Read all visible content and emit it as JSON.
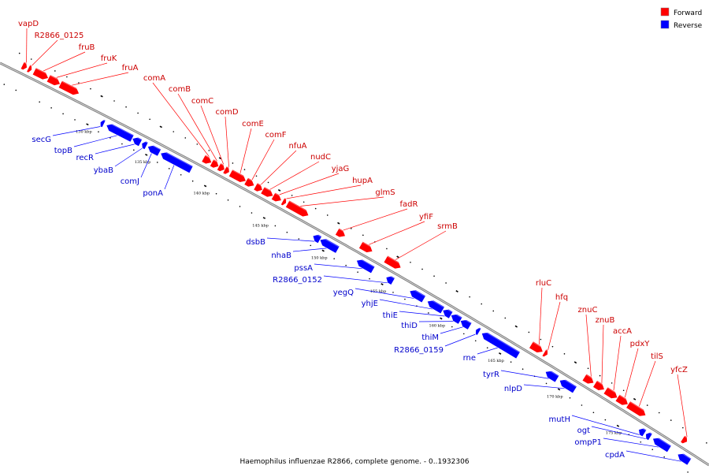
{
  "caption": "Haemophilus influenzae R2866, complete genome. - 0..1932306",
  "legend": [
    {
      "label": "Forward",
      "color": "#ff0000"
    },
    {
      "label": "Reverse",
      "color": "#0000ff"
    }
  ],
  "colors": {
    "forward": "#ff0000",
    "reverse": "#0000ff",
    "backbone": "#808080",
    "forward_label": "#cc0000",
    "reverse_label": "#0000cc"
  },
  "ticks": [
    {
      "kbp": 130,
      "label": "130 kbp"
    },
    {
      "kbp": 135,
      "label": "135 kbp"
    },
    {
      "kbp": 140,
      "label": "140 kbp"
    },
    {
      "kbp": 145,
      "label": "145 kbp"
    },
    {
      "kbp": 150,
      "label": "150 kbp"
    },
    {
      "kbp": 155,
      "label": "155 kbp"
    },
    {
      "kbp": 160,
      "label": "160 kbp"
    },
    {
      "kbp": 165,
      "label": "165 kbp"
    },
    {
      "kbp": 170,
      "label": "170 kbp"
    },
    {
      "kbp": 175,
      "label": "175 kbp"
    }
  ],
  "genes": [
    {
      "name": "vapD",
      "strand": "forward",
      "start": 123.6,
      "end": 124.0
    },
    {
      "name": "R2866_0125",
      "strand": "forward",
      "start": 124.1,
      "end": 124.4
    },
    {
      "name": "fruB",
      "strand": "forward",
      "start": 124.6,
      "end": 125.8
    },
    {
      "name": "fruK",
      "strand": "forward",
      "start": 125.8,
      "end": 126.8
    },
    {
      "name": "fruA",
      "strand": "forward",
      "start": 126.8,
      "end": 128.4
    },
    {
      "name": "secG",
      "strand": "reverse",
      "start": 130.8,
      "end": 131.1
    },
    {
      "name": "topB",
      "strand": "reverse",
      "start": 131.3,
      "end": 133.5
    },
    {
      "name": "recR",
      "strand": "reverse",
      "start": 133.5,
      "end": 134.2
    },
    {
      "name": "ybaB",
      "strand": "reverse",
      "start": 134.3,
      "end": 134.7
    },
    {
      "name": "comJ",
      "strand": "reverse",
      "start": 134.8,
      "end": 135.8
    },
    {
      "name": "ponA",
      "strand": "reverse",
      "start": 135.9,
      "end": 138.5
    },
    {
      "name": "comA",
      "strand": "forward",
      "start": 138.9,
      "end": 139.6
    },
    {
      "name": "comB",
      "strand": "forward",
      "start": 139.6,
      "end": 140.2
    },
    {
      "name": "comC",
      "strand": "forward",
      "start": 140.2,
      "end": 140.7
    },
    {
      "name": "comD",
      "strand": "forward",
      "start": 140.7,
      "end": 141.1
    },
    {
      "name": "comE",
      "strand": "forward",
      "start": 141.2,
      "end": 142.5
    },
    {
      "name": "comF",
      "strand": "forward",
      "start": 142.5,
      "end": 143.2
    },
    {
      "name": "nfuA",
      "strand": "forward",
      "start": 143.3,
      "end": 143.9
    },
    {
      "name": "nudC",
      "strand": "forward",
      "start": 143.9,
      "end": 144.8
    },
    {
      "name": "yjaG",
      "strand": "forward",
      "start": 144.8,
      "end": 145.5
    },
    {
      "name": "hupA",
      "strand": "forward",
      "start": 145.6,
      "end": 145.9
    },
    {
      "name": "glmS",
      "strand": "forward",
      "start": 146.0,
      "end": 147.8
    },
    {
      "name": "dsbB",
      "strand": "reverse",
      "start": 148.8,
      "end": 149.4
    },
    {
      "name": "nhaB",
      "strand": "reverse",
      "start": 149.4,
      "end": 150.9
    },
    {
      "name": "fadR",
      "strand": "forward",
      "start": 150.2,
      "end": 150.9
    },
    {
      "name": "yfiF",
      "strand": "forward",
      "start": 152.2,
      "end": 153.2
    },
    {
      "name": "pssA",
      "strand": "reverse",
      "start": 152.5,
      "end": 153.9
    },
    {
      "name": "srmB",
      "strand": "forward",
      "start": 154.3,
      "end": 155.6
    },
    {
      "name": "R2866_0152",
      "strand": "reverse",
      "start": 155.0,
      "end": 155.6
    },
    {
      "name": "yegQ",
      "strand": "reverse",
      "start": 157.0,
      "end": 158.2
    },
    {
      "name": "yhjE",
      "strand": "reverse",
      "start": 158.5,
      "end": 159.8
    },
    {
      "name": "thiE",
      "strand": "reverse",
      "start": 159.8,
      "end": 160.5
    },
    {
      "name": "thiD",
      "strand": "reverse",
      "start": 160.5,
      "end": 161.3
    },
    {
      "name": "thiM",
      "strand": "reverse",
      "start": 161.3,
      "end": 162.1
    },
    {
      "name": "R2866_0159",
      "strand": "reverse",
      "start": 162.6,
      "end": 162.9
    },
    {
      "name": "rne",
      "strand": "reverse",
      "start": 163.1,
      "end": 166.2
    },
    {
      "name": "rluC",
      "strand": "forward",
      "start": 166.6,
      "end": 167.6
    },
    {
      "name": "hfq",
      "strand": "forward",
      "start": 167.7,
      "end": 168.0
    },
    {
      "name": "tyrR",
      "strand": "reverse",
      "start": 168.5,
      "end": 169.5
    },
    {
      "name": "nlpD",
      "strand": "reverse",
      "start": 169.7,
      "end": 171.0
    },
    {
      "name": "znuC",
      "strand": "forward",
      "start": 171.1,
      "end": 171.9
    },
    {
      "name": "znuB",
      "strand": "forward",
      "start": 172.0,
      "end": 172.8
    },
    {
      "name": "accA",
      "strand": "forward",
      "start": 172.9,
      "end": 173.9
    },
    {
      "name": "pdxY",
      "strand": "forward",
      "start": 173.9,
      "end": 174.8
    },
    {
      "name": "tilS",
      "strand": "forward",
      "start": 174.8,
      "end": 176.3
    },
    {
      "name": "mutH",
      "strand": "reverse",
      "start": 176.4,
      "end": 176.9
    },
    {
      "name": "ogt",
      "strand": "reverse",
      "start": 177.0,
      "end": 177.4
    },
    {
      "name": "ompP1",
      "strand": "reverse",
      "start": 177.6,
      "end": 179.0
    },
    {
      "name": "yfcZ",
      "strand": "forward",
      "start": 179.4,
      "end": 179.8
    },
    {
      "name": "cpdA",
      "strand": "reverse",
      "start": 179.7,
      "end": 180.7
    }
  ]
}
